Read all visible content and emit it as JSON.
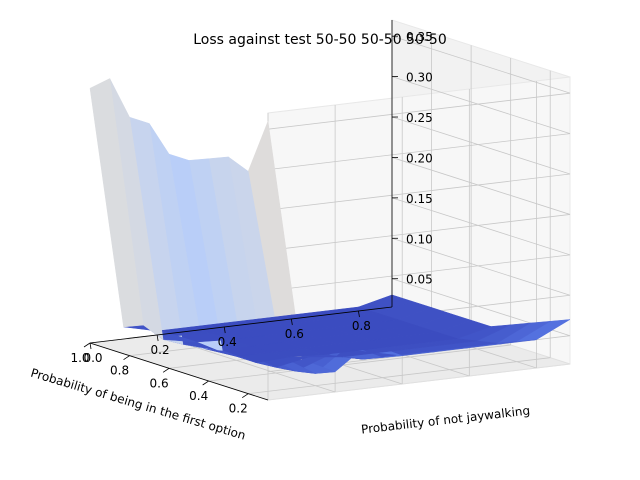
{
  "chart_data": {
    "type": "surface3d",
    "title": "Loss against test 50-50 50-50 50-50",
    "xlabel": "Probability of being in the first option",
    "ylabel": "Probability of not jaywalking",
    "zlabel": "",
    "xticks": [
      "0.2",
      "0.4",
      "0.6",
      "0.8",
      "1.0"
    ],
    "yticks": [
      "0.0",
      "0.2",
      "0.4",
      "0.6",
      "0.8"
    ],
    "zticks": [
      "0.05",
      "0.10",
      "0.15",
      "0.20",
      "0.25",
      "0.30",
      "0.35"
    ],
    "xlim": [
      0.1,
      1.0
    ],
    "ylim": [
      0.0,
      0.9
    ],
    "zlim": [
      0.015,
      0.37
    ],
    "colormap": "coolwarm",
    "grid": true,
    "x": [
      0.1,
      0.2,
      0.3,
      0.4,
      0.5,
      0.6,
      0.7,
      0.8,
      0.9,
      1.0
    ],
    "y": [
      0.0,
      0.1,
      0.2,
      0.3,
      0.4,
      0.5,
      0.6,
      0.7,
      0.8,
      0.9
    ],
    "z": [
      [
        0.36,
        0.29,
        0.3,
        0.29,
        0.28,
        0.28,
        0.31,
        0.31,
        0.35,
        0.33
      ],
      [
        0.06,
        0.055,
        0.05,
        0.045,
        0.04,
        0.035,
        0.032,
        0.03,
        0.04,
        0.03
      ],
      [
        0.04,
        0.03,
        0.025,
        0.022,
        0.02,
        0.02,
        0.02,
        0.022,
        0.022,
        0.02
      ],
      [
        0.07,
        0.06,
        0.04,
        0.03,
        0.022,
        0.02,
        0.02,
        0.02,
        0.02,
        0.02
      ],
      [
        0.05,
        0.04,
        0.03,
        0.025,
        0.02,
        0.02,
        0.02,
        0.02,
        0.02,
        0.02
      ],
      [
        0.05,
        0.04,
        0.03,
        0.025,
        0.02,
        0.02,
        0.02,
        0.02,
        0.02,
        0.02
      ],
      [
        0.05,
        0.04,
        0.03,
        0.025,
        0.02,
        0.02,
        0.02,
        0.02,
        0.02,
        0.02
      ],
      [
        0.05,
        0.04,
        0.03,
        0.025,
        0.02,
        0.02,
        0.02,
        0.02,
        0.02,
        0.02
      ],
      [
        0.05,
        0.04,
        0.03,
        0.025,
        0.02,
        0.02,
        0.02,
        0.02,
        0.02,
        0.02
      ],
      [
        0.07,
        0.06,
        0.05,
        0.04,
        0.03,
        0.03,
        0.03,
        0.03,
        0.03,
        0.03
      ]
    ]
  }
}
